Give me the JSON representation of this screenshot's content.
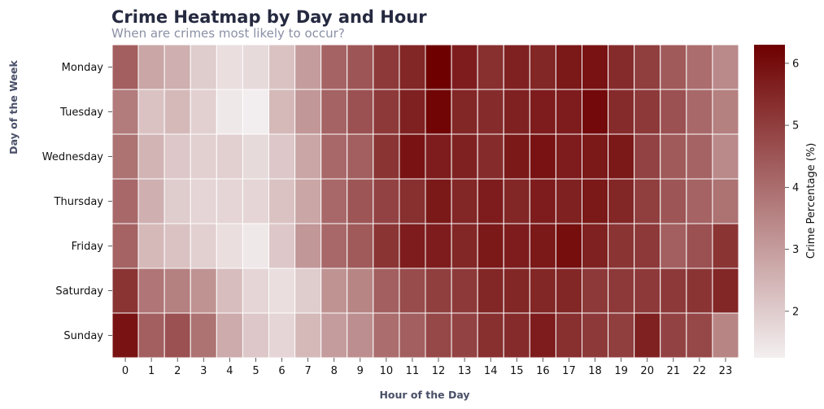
{
  "chart_data": {
    "type": "heatmap",
    "title": "Crime Heatmap by Day and Hour",
    "subtitle": "When are crimes most likely to occur?",
    "xlabel": "Hour of the Day",
    "ylabel": "Day of the Week",
    "colorbar_label": "Crime Percentage (%)",
    "x": [
      "0",
      "1",
      "2",
      "3",
      "4",
      "5",
      "6",
      "7",
      "8",
      "9",
      "10",
      "11",
      "12",
      "13",
      "14",
      "15",
      "16",
      "17",
      "18",
      "19",
      "20",
      "21",
      "22",
      "23"
    ],
    "y": [
      "Monday",
      "Tuesday",
      "Wednesday",
      "Thursday",
      "Friday",
      "Saturday",
      "Sunday"
    ],
    "values": [
      [
        4.3,
        2.8,
        2.6,
        2.0,
        1.6,
        1.7,
        2.2,
        3.0,
        4.2,
        4.5,
        5.1,
        5.5,
        6.3,
        5.7,
        5.3,
        5.6,
        5.5,
        5.8,
        5.9,
        5.4,
        5.0,
        4.4,
        4.0,
        3.4
      ],
      [
        3.7,
        2.2,
        2.4,
        1.9,
        1.4,
        1.3,
        2.4,
        3.1,
        4.2,
        4.6,
        5.1,
        5.6,
        6.2,
        5.5,
        5.4,
        5.6,
        5.7,
        5.7,
        6.1,
        5.4,
        5.1,
        4.6,
        4.1,
        3.6
      ],
      [
        3.9,
        2.5,
        2.1,
        1.9,
        1.9,
        1.7,
        2.1,
        2.8,
        4.1,
        4.3,
        5.2,
        5.9,
        5.7,
        5.6,
        5.4,
        5.8,
        5.9,
        5.7,
        5.8,
        5.8,
        4.9,
        4.4,
        4.2,
        3.4
      ],
      [
        4.1,
        2.6,
        2.0,
        1.8,
        1.8,
        1.8,
        2.2,
        2.8,
        4.1,
        4.5,
        4.9,
        5.3,
        5.8,
        5.5,
        5.7,
        5.5,
        5.7,
        5.6,
        5.8,
        5.5,
        5.0,
        4.5,
        4.2,
        3.9
      ],
      [
        4.2,
        2.4,
        2.2,
        1.9,
        1.6,
        1.4,
        2.1,
        3.1,
        4.1,
        4.4,
        5.2,
        5.7,
        5.7,
        5.5,
        5.8,
        5.7,
        5.8,
        6.0,
        5.6,
        5.2,
        5.1,
        4.3,
        4.6,
        5.2
      ],
      [
        5.2,
        3.8,
        3.6,
        3.2,
        2.3,
        1.8,
        1.6,
        2.0,
        3.2,
        3.5,
        4.3,
        4.7,
        5.0,
        5.1,
        5.5,
        5.5,
        5.5,
        5.5,
        5.1,
        5.1,
        5.1,
        5.1,
        5.2,
        5.5
      ],
      [
        5.9,
        4.3,
        4.6,
        3.9,
        2.7,
        2.1,
        1.8,
        2.4,
        3.0,
        3.3,
        4.0,
        4.3,
        4.8,
        4.9,
        5.3,
        5.4,
        5.7,
        5.3,
        5.1,
        5.0,
        5.6,
        4.9,
        4.8,
        3.5
      ]
    ],
    "colorbar_ticks": [
      "2",
      "3",
      "4",
      "5",
      "6"
    ],
    "colorbar_range": [
      1.25,
      6.3
    ],
    "color_low": "#f3eff0",
    "color_high": "#6e0000",
    "grid_lines": "white"
  }
}
